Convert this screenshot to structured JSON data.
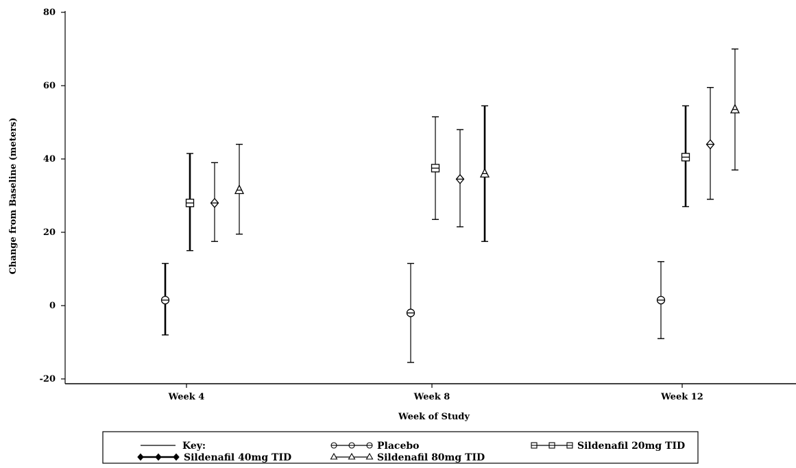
{
  "chart_data": {
    "type": "scatter",
    "subtype": "error-bar",
    "title": "",
    "xlabel": "Week of Study",
    "ylabel": "Change from Baseline (meters)",
    "categories": [
      "Week 4",
      "Week 8",
      "Week 12"
    ],
    "ylim": [
      -20,
      80
    ],
    "yticks": [
      "-20",
      "0",
      "20",
      "40",
      "60",
      "80"
    ],
    "grid": false,
    "legend_position": "bottom",
    "legend_key_label": "Key:",
    "series": [
      {
        "name": "Placebo",
        "marker": "circle",
        "values": [
          1.5,
          -2,
          1.5
        ],
        "lower": [
          -8,
          -15.5,
          -9
        ],
        "upper": [
          11.5,
          11.5,
          12
        ],
        "thick": [
          true,
          false,
          false
        ]
      },
      {
        "name": "Sildenafil 20mg TID",
        "marker": "square",
        "values": [
          28,
          37.5,
          40.5
        ],
        "lower": [
          15,
          23.5,
          27
        ],
        "upper": [
          41.5,
          51.5,
          54.5
        ],
        "thick": [
          true,
          false,
          true
        ]
      },
      {
        "name": "Sildenafil 40mg TID",
        "marker": "diamond",
        "values": [
          28,
          34.5,
          44
        ],
        "lower": [
          17.5,
          21.5,
          29
        ],
        "upper": [
          39,
          48,
          59.5
        ],
        "thick": [
          false,
          false,
          false
        ]
      },
      {
        "name": "Sildenafil 80mg TID",
        "marker": "triangle",
        "values": [
          31.5,
          36,
          53.5
        ],
        "lower": [
          19.5,
          17.5,
          37
        ],
        "upper": [
          44,
          54.5,
          70
        ],
        "thick": [
          false,
          true,
          false
        ]
      }
    ]
  }
}
